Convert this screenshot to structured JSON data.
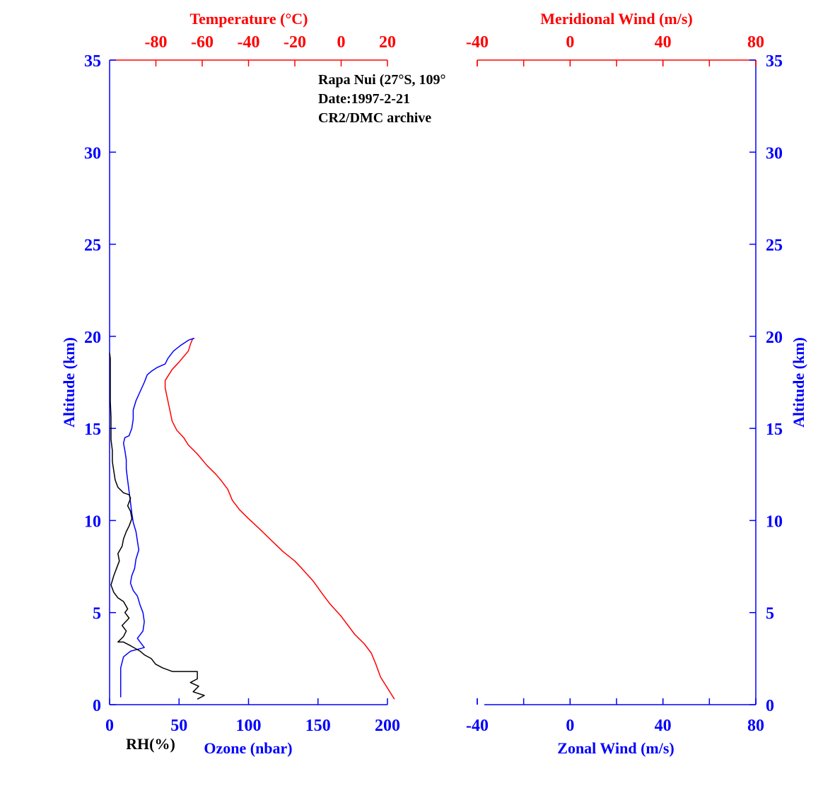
{
  "chart_data": {
    "type": "line",
    "annotation": [
      "Rapa Nui (27°S, 109°",
      "Date:1997-2-21",
      "CR2/DMC archive"
    ],
    "colors": {
      "temperature": "#ff0000",
      "ozone": "#0000ff",
      "rh": "#000000",
      "altitude_axis": "#0000ff",
      "wind_top_axis": "#ff0000"
    },
    "left_panel": {
      "top_axis": {
        "label": "Temperature (°C)",
        "range": [
          -100,
          20
        ],
        "ticks": [
          "-80",
          "-60",
          "-40",
          "-20",
          "0",
          "20"
        ],
        "tick_values": [
          -80,
          -60,
          -40,
          -20,
          0,
          20
        ]
      },
      "bottom_axis": {
        "label": "Ozone (nbar)",
        "range": [
          0,
          200
        ],
        "ticks": [
          "0",
          "50",
          "100",
          "150",
          "200"
        ],
        "tick_values": [
          0,
          50,
          100,
          150,
          200
        ]
      },
      "rh_label": "RH(%)",
      "y_axis": {
        "label": "Altitude (km)",
        "range": [
          0,
          35
        ],
        "ticks": [
          "0",
          "5",
          "10",
          "15",
          "20",
          "25",
          "30",
          "35"
        ],
        "tick_values": [
          0,
          5,
          10,
          15,
          20,
          25,
          30,
          35
        ]
      }
    },
    "right_panel": {
      "top_axis": {
        "label": "Meridional Wind (m/s)",
        "range": [
          -40,
          80
        ],
        "ticks": [
          "-40",
          "0",
          "40",
          "80"
        ],
        "tick_values": [
          -40,
          0,
          40,
          80
        ]
      },
      "bottom_axis": {
        "label": "Zonal Wind (m/s)",
        "range": [
          -40,
          80
        ],
        "ticks": [
          "-40",
          "0",
          "40",
          "80"
        ],
        "tick_values": [
          -40,
          0,
          40,
          80
        ]
      },
      "y_axis": {
        "label": "Altitude (km)",
        "range": [
          0,
          35
        ],
        "ticks": [
          "0",
          "5",
          "10",
          "15",
          "20",
          "25",
          "30",
          "35"
        ],
        "tick_values": [
          0,
          5,
          10,
          15,
          20,
          25,
          30,
          35
        ]
      }
    },
    "series": [
      {
        "name": "Temperature",
        "axis": "temperature",
        "points": [
          [
            23,
            0.3
          ],
          [
            20,
            0.9
          ],
          [
            17,
            1.5
          ],
          [
            15,
            2.2
          ],
          [
            13,
            2.8
          ],
          [
            10,
            3.3
          ],
          [
            6,
            3.8
          ],
          [
            3,
            4.3
          ],
          [
            0,
            4.8
          ],
          [
            -5,
            5.5
          ],
          [
            -8,
            6.0
          ],
          [
            -12,
            6.7
          ],
          [
            -17,
            7.4
          ],
          [
            -20,
            7.8
          ],
          [
            -25,
            8.3
          ],
          [
            -30,
            8.9
          ],
          [
            -34,
            9.4
          ],
          [
            -40,
            10.1
          ],
          [
            -44,
            10.6
          ],
          [
            -47,
            11.1
          ],
          [
            -49,
            11.7
          ],
          [
            -52,
            12.2
          ],
          [
            -54,
            12.5
          ],
          [
            -58,
            13.0
          ],
          [
            -62,
            13.6
          ],
          [
            -66,
            14.1
          ],
          [
            -68,
            14.5
          ],
          [
            -71,
            14.9
          ],
          [
            -73,
            15.4
          ],
          [
            -74,
            16.0
          ],
          [
            -75,
            16.6
          ],
          [
            -76,
            17.2
          ],
          [
            -76,
            17.6
          ],
          [
            -75,
            17.8
          ],
          [
            -73,
            18.2
          ],
          [
            -70,
            18.6
          ],
          [
            -68,
            18.9
          ],
          [
            -66,
            19.2
          ],
          [
            -65,
            19.6
          ],
          [
            -64,
            19.9
          ]
        ]
      },
      {
        "name": "Ozone",
        "axis": "ozone",
        "points": [
          [
            8,
            0.4
          ],
          [
            8,
            1.2
          ],
          [
            8,
            2.0
          ],
          [
            10,
            2.6
          ],
          [
            15,
            2.9
          ],
          [
            20,
            3.0
          ],
          [
            25,
            3.1
          ],
          [
            22,
            3.4
          ],
          [
            20,
            3.6
          ],
          [
            24,
            4.0
          ],
          [
            25,
            4.5
          ],
          [
            24,
            5.0
          ],
          [
            22,
            5.4
          ],
          [
            20,
            5.9
          ],
          [
            17,
            6.2
          ],
          [
            15,
            6.6
          ],
          [
            16,
            7.0
          ],
          [
            18,
            7.4
          ],
          [
            19,
            7.9
          ],
          [
            21,
            8.4
          ],
          [
            20,
            8.9
          ],
          [
            19,
            9.4
          ],
          [
            17,
            9.9
          ],
          [
            16,
            10.4
          ],
          [
            15,
            11.0
          ],
          [
            14,
            11.6
          ],
          [
            13,
            12.2
          ],
          [
            12,
            12.8
          ],
          [
            12,
            13.3
          ],
          [
            11,
            13.8
          ],
          [
            10,
            14.2
          ],
          [
            11,
            14.5
          ],
          [
            14,
            14.6
          ],
          [
            16,
            15.0
          ],
          [
            17,
            15.5
          ],
          [
            17,
            16.0
          ],
          [
            19,
            16.5
          ],
          [
            22,
            17.0
          ],
          [
            25,
            17.5
          ],
          [
            27,
            17.9
          ],
          [
            30,
            18.1
          ],
          [
            34,
            18.3
          ],
          [
            40,
            18.5
          ],
          [
            42,
            18.8
          ],
          [
            46,
            19.2
          ],
          [
            51,
            19.5
          ],
          [
            57,
            19.8
          ],
          [
            61,
            19.9
          ]
        ]
      },
      {
        "name": "RH",
        "axis": "rh",
        "points": [
          [
            63,
            0.3
          ],
          [
            68,
            0.5
          ],
          [
            60,
            0.7
          ],
          [
            64,
            1.0
          ],
          [
            58,
            1.2
          ],
          [
            63,
            1.4
          ],
          [
            63,
            1.8
          ],
          [
            45,
            1.8
          ],
          [
            38,
            2.0
          ],
          [
            33,
            2.2
          ],
          [
            30,
            2.5
          ],
          [
            25,
            2.7
          ],
          [
            22,
            2.9
          ],
          [
            15,
            3.2
          ],
          [
            10,
            3.4
          ],
          [
            6,
            3.4
          ],
          [
            10,
            3.7
          ],
          [
            12,
            4.0
          ],
          [
            9,
            4.3
          ],
          [
            14,
            4.7
          ],
          [
            11,
            5.0
          ],
          [
            13,
            5.2
          ],
          [
            10,
            5.6
          ],
          [
            6,
            5.8
          ],
          [
            3,
            6.1
          ],
          [
            1,
            6.5
          ],
          [
            3,
            7.0
          ],
          [
            5,
            7.4
          ],
          [
            7,
            7.8
          ],
          [
            6,
            8.2
          ],
          [
            9,
            8.6
          ],
          [
            10,
            9.0
          ],
          [
            12,
            9.4
          ],
          [
            14,
            9.7
          ],
          [
            16,
            10.1
          ],
          [
            15,
            10.5
          ],
          [
            13,
            10.8
          ],
          [
            15,
            11.2
          ],
          [
            14,
            11.4
          ],
          [
            10,
            11.5
          ],
          [
            6,
            11.8
          ],
          [
            4,
            12.2
          ],
          [
            3,
            12.7
          ],
          [
            2,
            13.2
          ],
          [
            2,
            13.8
          ],
          [
            1,
            14.4
          ],
          [
            1,
            15.0
          ],
          [
            1,
            15.6
          ],
          [
            0.5,
            16.5
          ],
          [
            0.5,
            17.4
          ],
          [
            0.5,
            18.2
          ],
          [
            0.5,
            18.8
          ],
          [
            0,
            19.1
          ]
        ]
      }
    ]
  }
}
